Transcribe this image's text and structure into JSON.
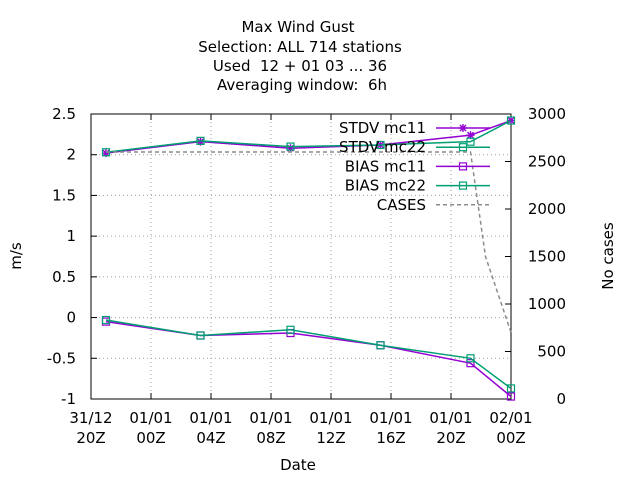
{
  "chart_data": {
    "type": "line",
    "title_lines": [
      "Max Wind Gust",
      "Selection: ALL    714 stations",
      "Used  12 + 01 03 ... 36",
      "Averaging window:  6h"
    ],
    "xlabel": "Date",
    "ylabel": "m/s",
    "y2label": "No cases",
    "x_ticks": [
      {
        "h": 0,
        "l1": "31/12",
        "l2": "20Z"
      },
      {
        "h": 4,
        "l1": "01/01",
        "l2": "00Z"
      },
      {
        "h": 8,
        "l1": "01/01",
        "l2": "04Z"
      },
      {
        "h": 12,
        "l1": "01/01",
        "l2": "08Z"
      },
      {
        "h": 16,
        "l1": "01/01",
        "l2": "12Z"
      },
      {
        "h": 20,
        "l1": "01/01",
        "l2": "16Z"
      },
      {
        "h": 24,
        "l1": "01/01",
        "l2": "20Z"
      },
      {
        "h": 28,
        "l1": "02/01",
        "l2": "00Z"
      }
    ],
    "xlim": [
      0,
      28
    ],
    "ylim": [
      -1,
      2.5
    ],
    "y_ticks": [
      2.5,
      2,
      1.5,
      1,
      0.5,
      0,
      -0.5,
      -1
    ],
    "y_tick_labels": [
      "2.5",
      "2",
      "1.5",
      "1",
      "0.5",
      "0",
      "-0.5",
      "-1"
    ],
    "y2lim": [
      0,
      3000
    ],
    "y2_ticks": [
      3000,
      2500,
      2000,
      1500,
      1000,
      500,
      0
    ],
    "y2_tick_labels": [
      "3000",
      "2500",
      "2000",
      "1500",
      "1000",
      "500",
      "0"
    ],
    "grid": true,
    "legend_position": "top-right",
    "series": [
      {
        "name": "STDV mc11",
        "marker": "star",
        "color": "#9400d3",
        "axis": "y",
        "x": [
          1,
          7.3,
          13.3,
          19.3,
          25.3,
          28
        ],
        "y": [
          2.02,
          2.16,
          2.08,
          2.12,
          2.24,
          2.42
        ]
      },
      {
        "name": "STDV mc22",
        "marker": "square",
        "color": "#009e73",
        "axis": "y",
        "x": [
          1,
          7.3,
          13.3,
          19.3,
          25.3,
          28
        ],
        "y": [
          2.03,
          2.17,
          2.1,
          2.12,
          2.16,
          2.42
        ]
      },
      {
        "name": "BIAS mc11",
        "marker": "square",
        "color": "#9400d3",
        "axis": "y",
        "x": [
          1,
          7.3,
          13.3,
          19.3,
          25.3,
          28
        ],
        "y": [
          -0.05,
          -0.22,
          -0.19,
          -0.34,
          -0.56,
          -0.97
        ]
      },
      {
        "name": "BIAS mc22",
        "marker": "square",
        "color": "#009e73",
        "axis": "y",
        "x": [
          1,
          7.3,
          13.3,
          19.3,
          25.3,
          28
        ],
        "y": [
          -0.03,
          -0.22,
          -0.15,
          -0.34,
          -0.5,
          -0.87
        ]
      },
      {
        "name": "CASES",
        "marker": "none",
        "color": "#8c8c8c",
        "dashed": true,
        "axis": "y2",
        "x": [
          1,
          7.3,
          13.3,
          19.3,
          25.3,
          26.3,
          28
        ],
        "y": [
          2600,
          2600,
          2600,
          2600,
          2600,
          1500,
          700
        ]
      }
    ]
  }
}
